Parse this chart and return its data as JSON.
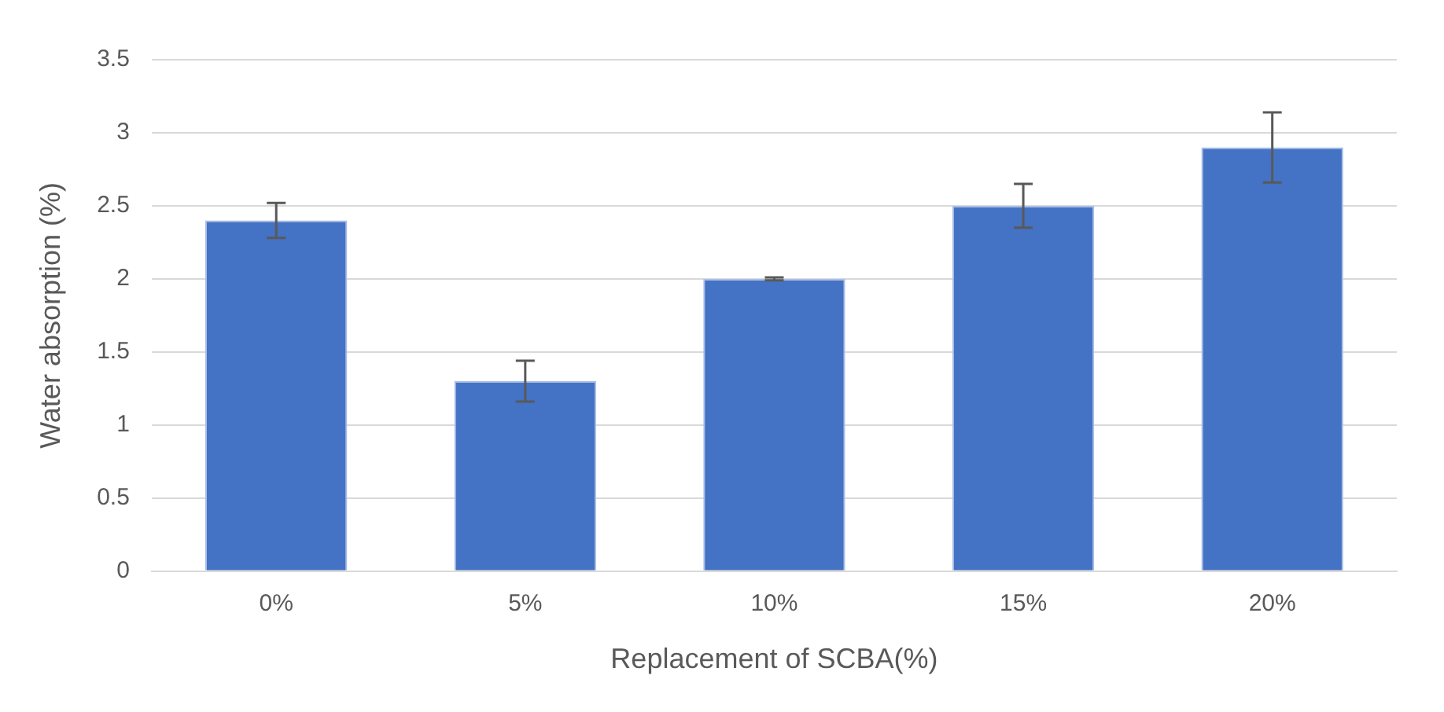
{
  "chart_data": {
    "type": "bar",
    "xlabel": "Replacement of SCBA(%)",
    "ylabel": "Water absorption (%)",
    "categories": [
      "0%",
      "5%",
      "10%",
      "15%",
      "20%"
    ],
    "values": [
      2.4,
      1.3,
      2.0,
      2.5,
      2.9
    ],
    "errors": [
      0.12,
      0.14,
      0.01,
      0.15,
      0.24
    ],
    "color": "#4472c4",
    "ylim": [
      0,
      3.5
    ],
    "yticks": [
      0,
      0.5,
      1,
      1.5,
      2,
      2.5,
      3,
      3.5
    ],
    "grid": "y"
  }
}
